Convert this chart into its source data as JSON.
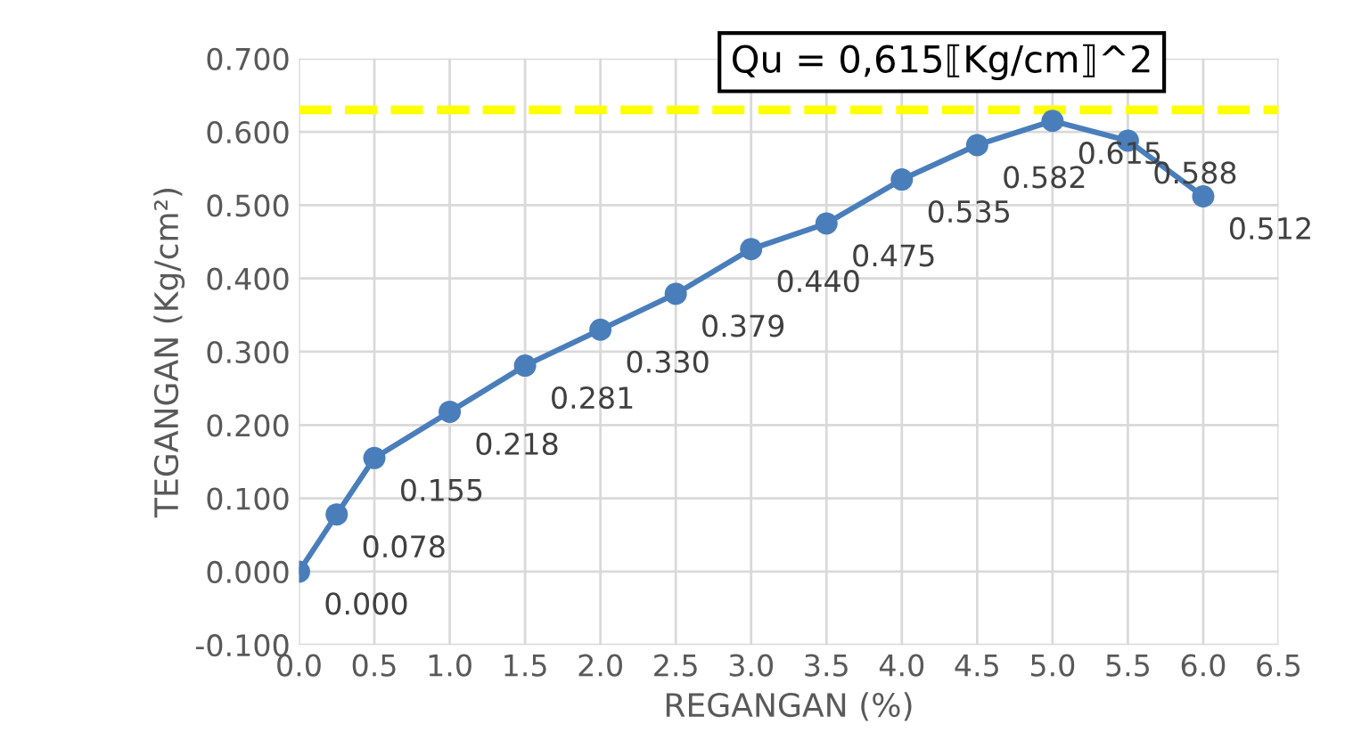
{
  "chart_data": {
    "type": "line",
    "xlabel": "REGANGAN (%)",
    "ylabel": "TEGANGAN (Kg/cm²)",
    "x": [
      0,
      0.25,
      0.5,
      1.0,
      1.5,
      2.0,
      2.5,
      3.0,
      3.5,
      4.0,
      4.5,
      5.0,
      5.5,
      6.0
    ],
    "series": [
      {
        "color": "#4a7ebb",
        "values": [
          0.0,
          0.078,
          0.155,
          0.218,
          0.281,
          0.33,
          0.379,
          0.44,
          0.475,
          0.535,
          0.582,
          0.615,
          0.588,
          0.512
        ],
        "value_labels": [
          "0.000",
          "0.078",
          "0.155",
          "0.218",
          "0.281",
          "0.330",
          "0.379",
          "0.440",
          "0.475",
          "0.535",
          "0.582",
          "0.615",
          "0.588",
          "0.512"
        ]
      }
    ],
    "xlim": [
      0,
      6.5
    ],
    "xticks": [
      {
        "value": 0,
        "label": "0.0"
      },
      {
        "value": 0.5,
        "label": "0.5"
      },
      {
        "value": 1,
        "label": "1.0"
      },
      {
        "value": 1.5,
        "label": "1.5"
      },
      {
        "value": 2,
        "label": "2.0"
      },
      {
        "value": 2.5,
        "label": "2.5"
      },
      {
        "value": 3,
        "label": "3.0"
      },
      {
        "value": 3.5,
        "label": "3.5"
      },
      {
        "value": 4,
        "label": "4.0"
      },
      {
        "value": 4.5,
        "label": "4.5"
      },
      {
        "value": 5,
        "label": "5.0"
      },
      {
        "value": 5.5,
        "label": "5.5"
      },
      {
        "value": 6,
        "label": "6.0"
      },
      {
        "value": 6.5,
        "label": "6.5"
      }
    ],
    "ylim": [
      -0.1,
      0.7
    ],
    "yticks": [
      {
        "value": -0.1,
        "label": "-0.100"
      },
      {
        "value": 0,
        "label": "0.000"
      },
      {
        "value": 0.1,
        "label": "0.100"
      },
      {
        "value": 0.2,
        "label": "0.200"
      },
      {
        "value": 0.3,
        "label": "0.300"
      },
      {
        "value": 0.4,
        "label": "0.400"
      },
      {
        "value": 0.5,
        "label": "0.500"
      },
      {
        "value": 0.6,
        "label": "0.600"
      },
      {
        "value": 0.7,
        "label": "0.700"
      }
    ],
    "ref_lines": [
      {
        "axis": "y",
        "value": 0.63,
        "color": "#ffff00",
        "line_style": "dashed"
      }
    ],
    "annotations": [
      "Qu = 0,615⟦Kg/cm⟧^2"
    ],
    "grid": true,
    "marker": "circle",
    "line_style": "solid",
    "legend": false
  }
}
